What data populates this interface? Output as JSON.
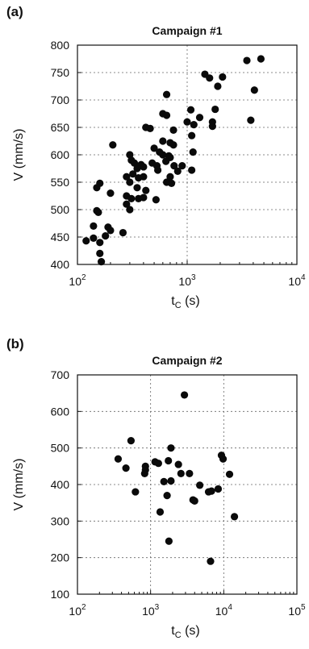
{
  "chart_data": [
    {
      "type": "scatter",
      "panel_label": "(a)",
      "title": "Campaign #1",
      "xlabel": "t",
      "xlabel_sub": "C",
      "xlabel_unit": "(s)",
      "ylabel": "V (mm/s)",
      "x_scale": "log",
      "xlim": [
        100,
        10000
      ],
      "ylim": [
        400,
        800
      ],
      "x_ticks": [
        100,
        1000,
        10000
      ],
      "x_tick_labels": [
        {
          "base": "10",
          "exp": "2"
        },
        {
          "base": "10",
          "exp": "3"
        },
        {
          "base": "10",
          "exp": "4"
        }
      ],
      "y_ticks": [
        400,
        450,
        500,
        550,
        600,
        650,
        700,
        750,
        800
      ],
      "y_tick_labels": [
        "400",
        "450",
        "500",
        "550",
        "600",
        "650",
        "700",
        "750",
        "800"
      ],
      "grid": true,
      "points": [
        [
          4700,
          775
        ],
        [
          3500,
          772
        ],
        [
          1450,
          747
        ],
        [
          2100,
          742
        ],
        [
          1600,
          740
        ],
        [
          1900,
          725
        ],
        [
          4100,
          718
        ],
        [
          650,
          710
        ],
        [
          3800,
          663
        ],
        [
          1800,
          683
        ],
        [
          1300,
          668
        ],
        [
          1700,
          660
        ],
        [
          1080,
          682
        ],
        [
          1000,
          660
        ],
        [
          600,
          675
        ],
        [
          650,
          672
        ],
        [
          1700,
          652
        ],
        [
          1150,
          655
        ],
        [
          460,
          648
        ],
        [
          420,
          650
        ],
        [
          750,
          645
        ],
        [
          1100,
          635
        ],
        [
          600,
          625
        ],
        [
          700,
          622
        ],
        [
          750,
          618
        ],
        [
          500,
          612
        ],
        [
          210,
          618
        ],
        [
          560,
          605
        ],
        [
          1130,
          605
        ],
        [
          600,
          600
        ],
        [
          680,
          598
        ],
        [
          300,
          600
        ],
        [
          310,
          590
        ],
        [
          330,
          585
        ],
        [
          380,
          582
        ],
        [
          400,
          578
        ],
        [
          350,
          575
        ],
        [
          480,
          585
        ],
        [
          530,
          580
        ],
        [
          700,
          595
        ],
        [
          760,
          580
        ],
        [
          640,
          588
        ],
        [
          900,
          580
        ],
        [
          280,
          560
        ],
        [
          320,
          565
        ],
        [
          360,
          558
        ],
        [
          400,
          560
        ],
        [
          1100,
          572
        ],
        [
          820,
          570
        ],
        [
          540,
          572
        ],
        [
          700,
          560
        ],
        [
          300,
          550
        ],
        [
          350,
          540
        ],
        [
          420,
          535
        ],
        [
          650,
          550
        ],
        [
          720,
          548
        ],
        [
          150,
          540
        ],
        [
          160,
          548
        ],
        [
          280,
          525
        ],
        [
          310,
          520
        ],
        [
          360,
          520
        ],
        [
          400,
          522
        ],
        [
          280,
          510
        ],
        [
          300,
          500
        ],
        [
          200,
          530
        ],
        [
          520,
          518
        ],
        [
          150,
          498
        ],
        [
          155,
          495
        ],
        [
          140,
          470
        ],
        [
          190,
          468
        ],
        [
          200,
          462
        ],
        [
          180,
          452
        ],
        [
          140,
          448
        ],
        [
          260,
          458
        ],
        [
          160,
          440
        ],
        [
          120,
          443
        ],
        [
          160,
          420
        ],
        [
          165,
          405
        ]
      ]
    },
    {
      "type": "scatter",
      "panel_label": "(b)",
      "title": "Campaign #2",
      "xlabel": "t",
      "xlabel_sub": "C",
      "xlabel_unit": "(s)",
      "ylabel": "V (mm/s)",
      "x_scale": "log",
      "xlim": [
        100,
        100000
      ],
      "ylim": [
        100,
        700
      ],
      "x_ticks": [
        100,
        1000,
        10000,
        100000
      ],
      "x_tick_labels": [
        {
          "base": "10",
          "exp": "2"
        },
        {
          "base": "10",
          "exp": "3"
        },
        {
          "base": "10",
          "exp": "4"
        },
        {
          "base": "10",
          "exp": "5"
        }
      ],
      "y_ticks": [
        100,
        200,
        300,
        400,
        500,
        600,
        700
      ],
      "y_tick_labels": [
        "100",
        "200",
        "300",
        "400",
        "500",
        "600",
        "700"
      ],
      "grid": true,
      "points": [
        [
          2900,
          645
        ],
        [
          540,
          520
        ],
        [
          1900,
          500
        ],
        [
          360,
          470
        ],
        [
          9300,
          480
        ],
        [
          9800,
          470
        ],
        [
          460,
          445
        ],
        [
          850,
          450
        ],
        [
          1750,
          465
        ],
        [
          2400,
          455
        ],
        [
          850,
          440
        ],
        [
          1150,
          462
        ],
        [
          1280,
          458
        ],
        [
          1520,
          408
        ],
        [
          1900,
          410
        ],
        [
          2600,
          430
        ],
        [
          3400,
          430
        ],
        [
          4700,
          398
        ],
        [
          6800,
          382
        ],
        [
          8400,
          388
        ],
        [
          12000,
          428
        ],
        [
          830,
          430
        ],
        [
          620,
          380
        ],
        [
          1680,
          370
        ],
        [
          3800,
          358
        ],
        [
          4000,
          355
        ],
        [
          6200,
          380
        ],
        [
          1350,
          325
        ],
        [
          14000,
          312
        ],
        [
          1780,
          245
        ],
        [
          6600,
          190
        ]
      ]
    }
  ]
}
